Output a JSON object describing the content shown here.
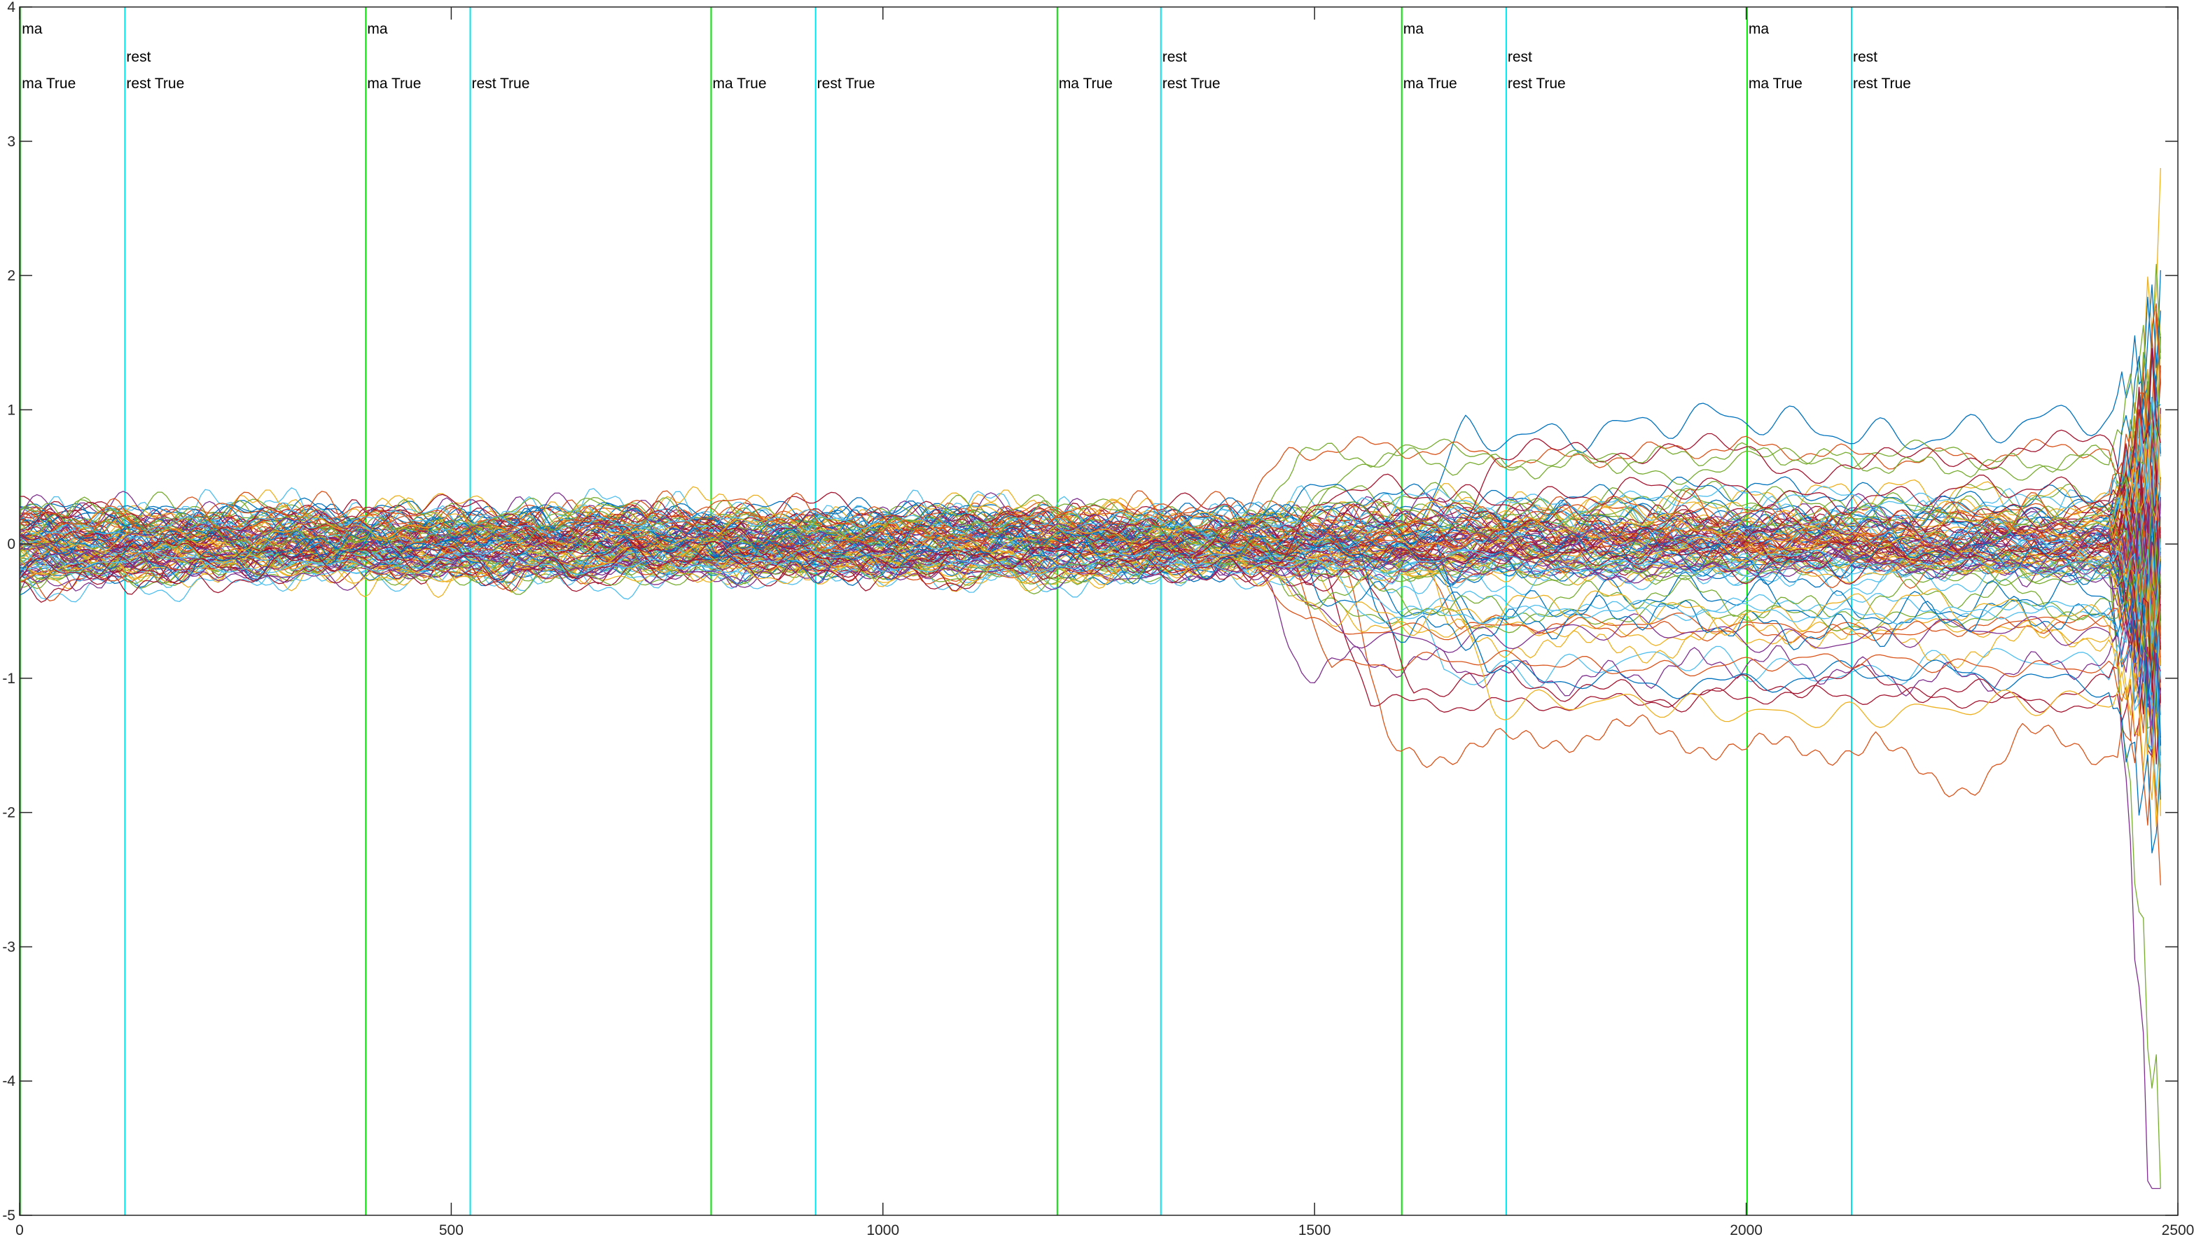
{
  "chart_data": {
    "type": "line",
    "title": "",
    "xlabel": "",
    "ylabel": "",
    "xlim": [
      0,
      2500
    ],
    "ylim": [
      -5,
      4
    ],
    "grid": false,
    "legend": "none",
    "x_ticks": [
      0,
      500,
      1000,
      1500,
      2000,
      2500
    ],
    "x_tick_labels": [
      "0",
      "500",
      "1000",
      "1500",
      "2000",
      "2500"
    ],
    "y_ticks": [
      4,
      3,
      2,
      1,
      0,
      -1,
      -2,
      -3,
      -4,
      -5
    ],
    "y_tick_labels": [
      "4",
      "3",
      "2",
      "1",
      "0",
      "-1",
      "-2",
      "-3",
      "-4",
      "-5"
    ],
    "colors": [
      "#0072bd",
      "#d95319",
      "#edb120",
      "#7e2f8e",
      "#77ac30",
      "#4dbeee",
      "#a2142f"
    ],
    "event_markers": [
      {
        "x": 1,
        "kind": "ma",
        "color": "#00e600",
        "labels": [
          "ma",
          "ma True"
        ]
      },
      {
        "x": 122,
        "kind": "rest",
        "color": "#00e5ee",
        "labels": [
          "rest",
          "rest True"
        ]
      },
      {
        "x": 401,
        "kind": "ma",
        "color": "#00e600",
        "labels": [
          "ma",
          "ma True"
        ]
      },
      {
        "x": 522,
        "kind": "rest",
        "color": "#00e5ee",
        "labels": [
          "",
          "rest True"
        ]
      },
      {
        "x": 801,
        "kind": "ma",
        "color": "#00e600",
        "labels": [
          "",
          "ma True"
        ]
      },
      {
        "x": 922,
        "kind": "rest",
        "color": "#00e5ee",
        "labels": [
          "",
          "rest True"
        ]
      },
      {
        "x": 1202,
        "kind": "ma",
        "color": "#00e600",
        "labels": [
          "",
          "ma True"
        ]
      },
      {
        "x": 1322,
        "kind": "rest",
        "color": "#00e5ee",
        "labels": [
          "rest",
          "rest True"
        ]
      },
      {
        "x": 1601,
        "kind": "ma",
        "color": "#00e600",
        "labels": [
          "ma",
          "ma True"
        ]
      },
      {
        "x": 1722,
        "kind": "rest",
        "color": "#00e5ee",
        "labels": [
          "rest",
          "rest True"
        ]
      },
      {
        "x": 2001,
        "kind": "ma",
        "color": "#00e600",
        "labels": [
          "ma",
          "ma True"
        ]
      },
      {
        "x": 2122,
        "kind": "rest",
        "color": "#00e5ee",
        "labels": [
          "rest",
          "rest True"
        ]
      }
    ],
    "series_summary": {
      "count": 112,
      "x_end": 2480,
      "main_band": [
        -0.4,
        0.4
      ],
      "highest_curve_after_1450": 0.8,
      "lowest_curve_plateau": -1.6,
      "lowest_curve_dip_near_2250": -2.0,
      "final_burst_max": 3.2,
      "final_burst_min": -4.8
    }
  }
}
